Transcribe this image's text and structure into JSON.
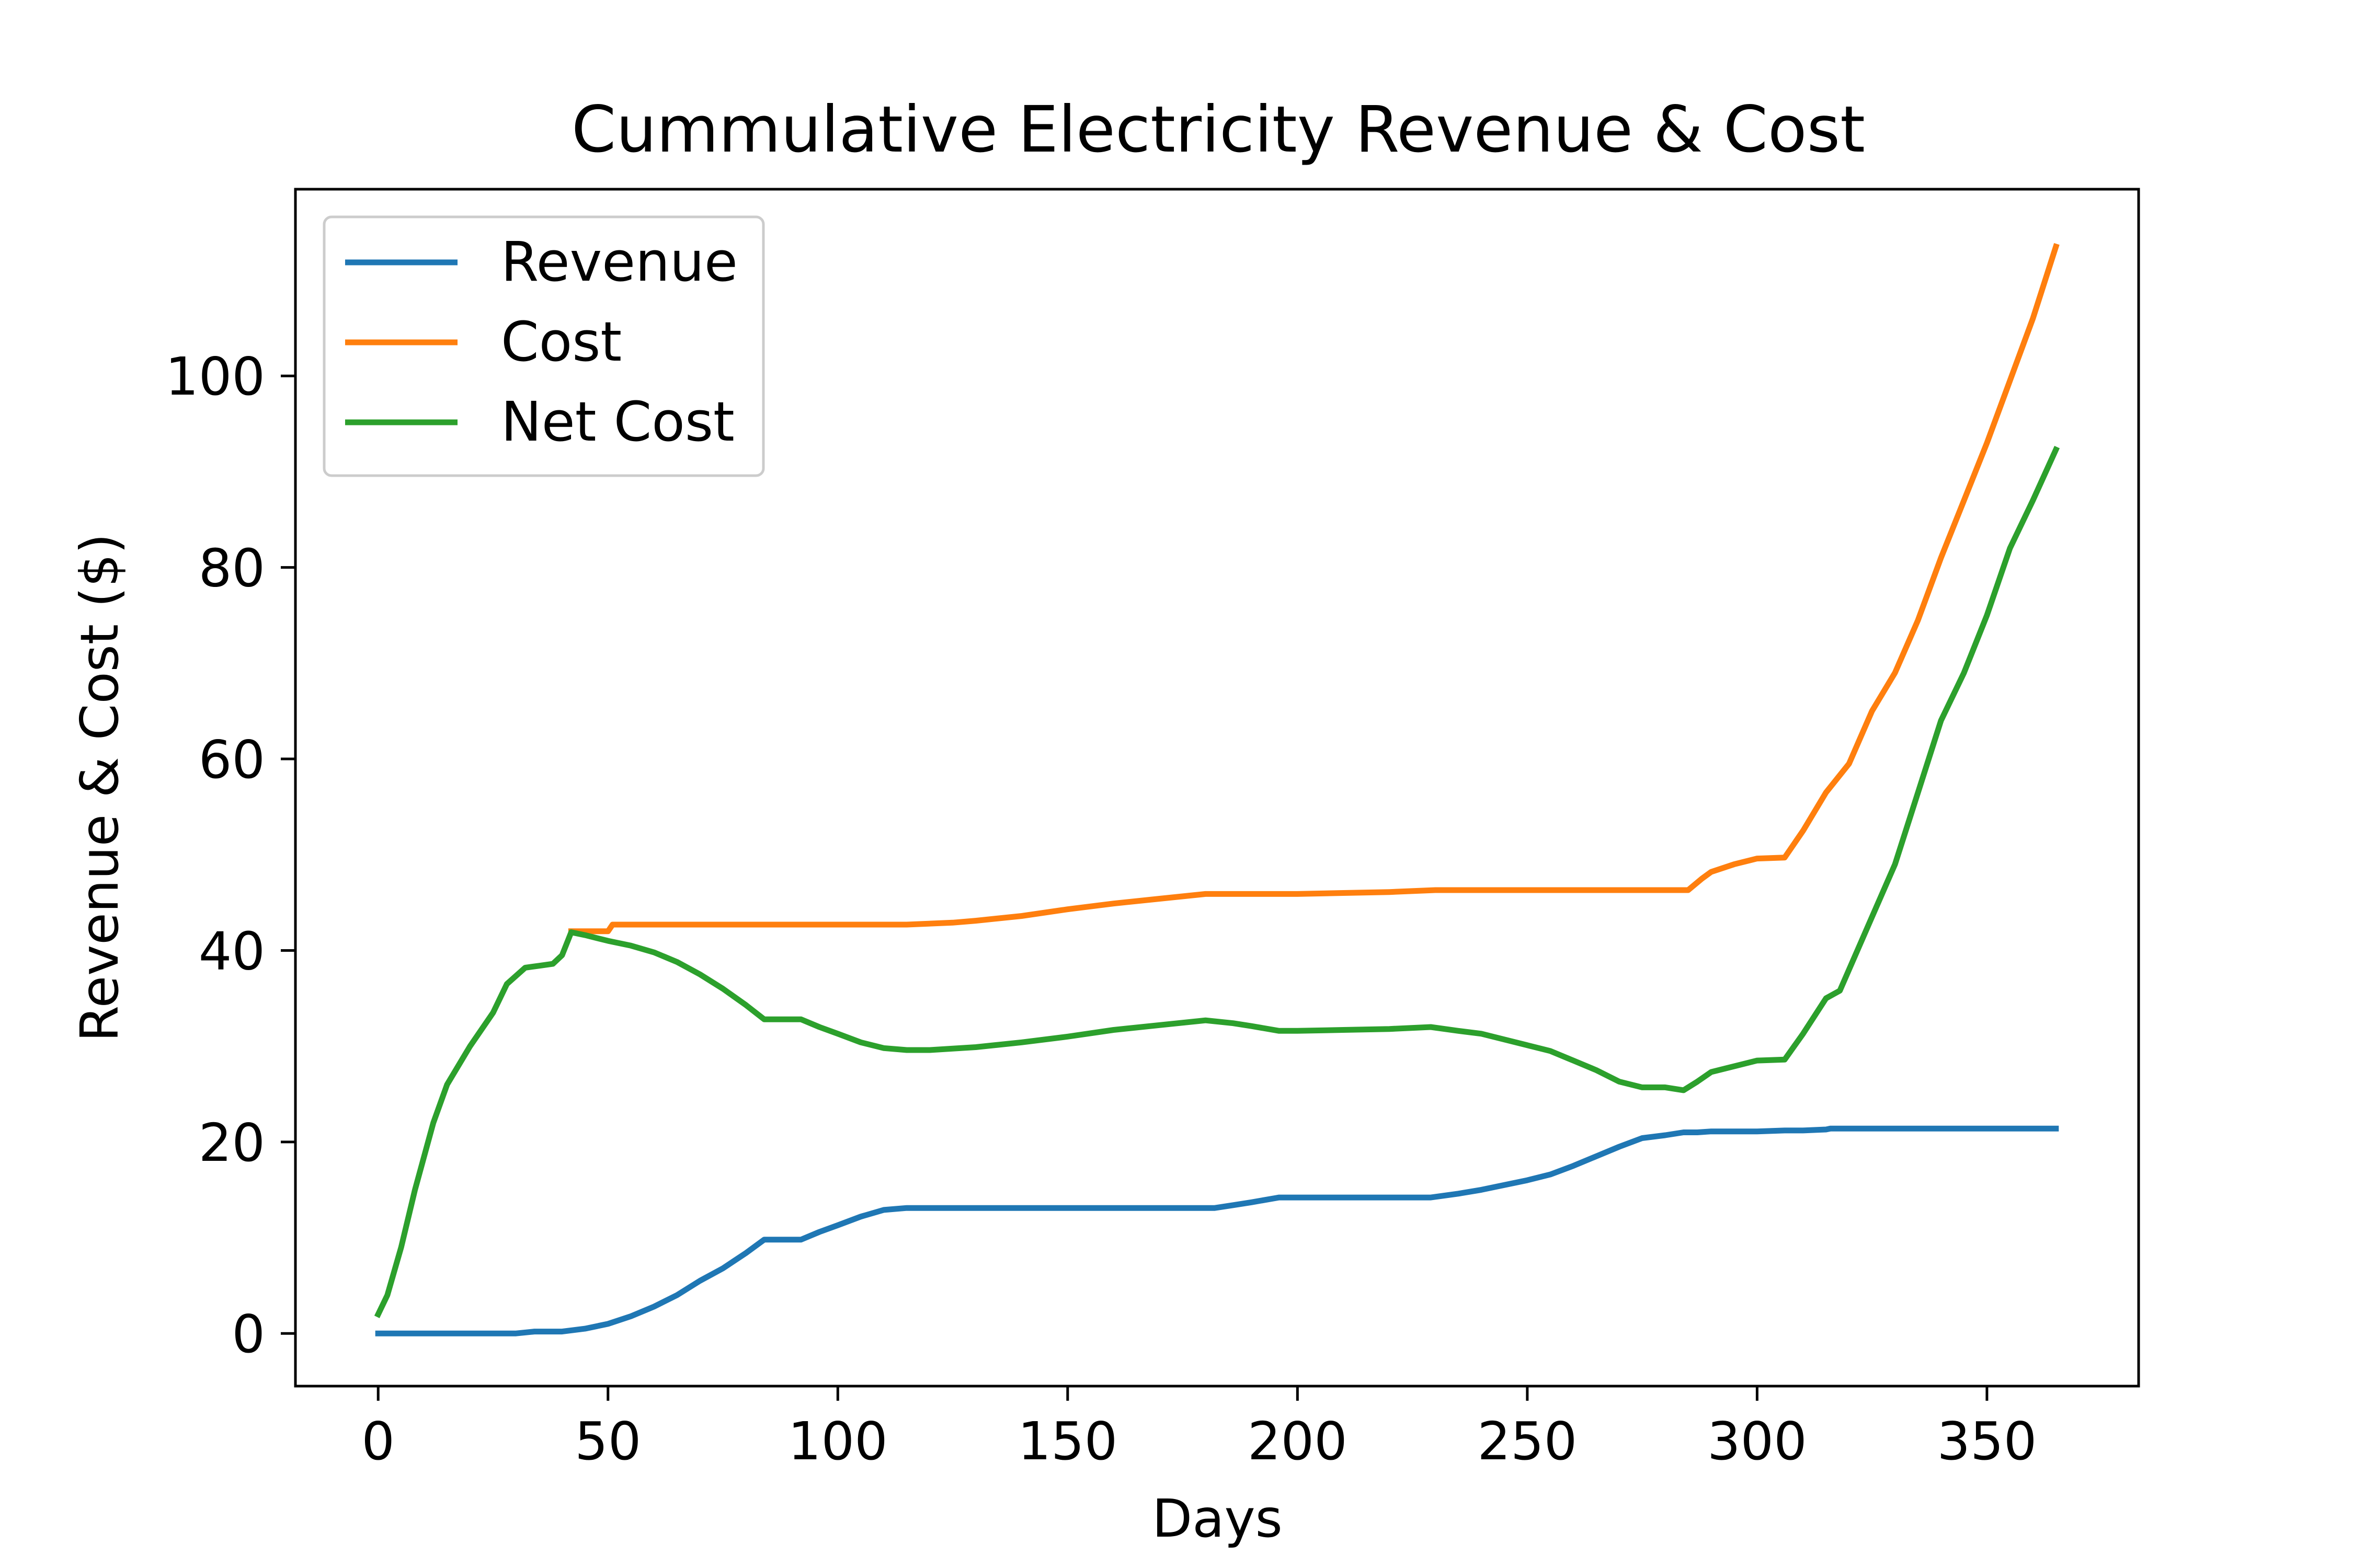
{
  "chart_data": {
    "type": "line",
    "title": "Cummulative Electricity Revenue & Cost",
    "xlabel": "Days",
    "ylabel": "Revenue & Cost ($)",
    "xlim": [
      -18,
      383
    ],
    "ylim": [
      -5.5,
      119.5
    ],
    "xticks": [
      0,
      50,
      100,
      150,
      200,
      250,
      300,
      350
    ],
    "yticks": [
      0,
      20,
      40,
      60,
      80,
      100
    ],
    "grid": false,
    "legend_position": "upper-left",
    "series": [
      {
        "name": "Revenue",
        "color": "#1f77b4",
        "x": [
          0,
          10,
          20,
          30,
          34,
          40,
          45,
          50,
          55,
          60,
          65,
          70,
          75,
          80,
          84,
          88,
          92,
          96,
          100,
          105,
          110,
          115,
          120,
          130,
          150,
          170,
          182,
          186,
          190,
          196,
          200,
          210,
          220,
          229,
          235,
          240,
          245,
          250,
          255,
          260,
          265,
          270,
          275,
          280,
          284,
          287,
          290,
          300,
          306,
          310,
          315,
          316,
          320,
          330,
          340,
          350,
          360,
          365
        ],
        "y": [
          0,
          0,
          0,
          0,
          0.2,
          0.2,
          0.5,
          1.0,
          1.8,
          2.8,
          4.0,
          5.5,
          6.8,
          8.4,
          9.8,
          9.8,
          9.8,
          10.6,
          11.3,
          12.2,
          12.9,
          13.1,
          13.1,
          13.1,
          13.1,
          13.1,
          13.1,
          13.4,
          13.7,
          14.2,
          14.2,
          14.2,
          14.2,
          14.2,
          14.6,
          15.0,
          15.5,
          16.0,
          16.6,
          17.5,
          18.5,
          19.5,
          20.4,
          20.7,
          21.0,
          21.0,
          21.1,
          21.1,
          21.2,
          21.2,
          21.3,
          21.4,
          21.4,
          21.4,
          21.4,
          21.4,
          21.4,
          21.4
        ]
      },
      {
        "name": "Cost",
        "color": "#ff7f0e",
        "x": [
          42,
          50,
          51,
          60,
          80,
          100,
          115,
          125,
          130,
          140,
          150,
          160,
          170,
          180,
          190,
          200,
          210,
          220,
          230,
          240,
          260,
          280,
          285,
          288,
          290,
          295,
          300,
          306,
          310,
          315,
          320,
          325,
          330,
          335,
          340,
          345,
          350,
          355,
          360,
          365
        ],
        "y": [
          42.0,
          42.0,
          42.7,
          42.7,
          42.7,
          42.7,
          42.7,
          42.9,
          43.1,
          43.6,
          44.3,
          44.9,
          45.4,
          45.9,
          45.9,
          45.9,
          46.0,
          46.1,
          46.3,
          46.3,
          46.3,
          46.3,
          46.3,
          47.5,
          48.2,
          49.0,
          49.6,
          49.7,
          52.5,
          56.5,
          59.5,
          65.0,
          69.0,
          74.5,
          81.0,
          87.0,
          93.0,
          99.5,
          106.0,
          113.5
        ]
      },
      {
        "name": "Net Cost",
        "color": "#2ca02c",
        "x": [
          0,
          2,
          5,
          8,
          12,
          15,
          20,
          25,
          28,
          32,
          35,
          38,
          40,
          42,
          45,
          50,
          55,
          60,
          65,
          70,
          75,
          80,
          84,
          88,
          92,
          96,
          100,
          105,
          110,
          115,
          120,
          130,
          140,
          150,
          160,
          170,
          180,
          186,
          190,
          196,
          200,
          210,
          220,
          229,
          235,
          240,
          245,
          250,
          255,
          260,
          265,
          270,
          275,
          280,
          284,
          287,
          290,
          300,
          306,
          310,
          315,
          318,
          320,
          325,
          330,
          335,
          340,
          345,
          350,
          355,
          360,
          365
        ],
        "y": [
          2.0,
          4.0,
          9.0,
          15.0,
          22.0,
          26.0,
          30.0,
          33.5,
          36.5,
          38.2,
          38.4,
          38.6,
          39.5,
          41.9,
          41.6,
          41.0,
          40.5,
          39.8,
          38.8,
          37.5,
          36.0,
          34.3,
          32.8,
          32.8,
          32.8,
          32.0,
          31.3,
          30.4,
          29.8,
          29.6,
          29.6,
          29.9,
          30.4,
          31.0,
          31.7,
          32.2,
          32.7,
          32.4,
          32.1,
          31.6,
          31.6,
          31.7,
          31.8,
          32.0,
          31.6,
          31.3,
          30.7,
          30.1,
          29.5,
          28.5,
          27.5,
          26.3,
          25.7,
          25.7,
          25.4,
          26.3,
          27.3,
          28.5,
          28.6,
          31.3,
          35.0,
          35.8,
          38.0,
          43.5,
          49.0,
          56.5,
          64.0,
          69.0,
          75.0,
          82.0,
          87.0,
          92.3
        ]
      }
    ]
  }
}
